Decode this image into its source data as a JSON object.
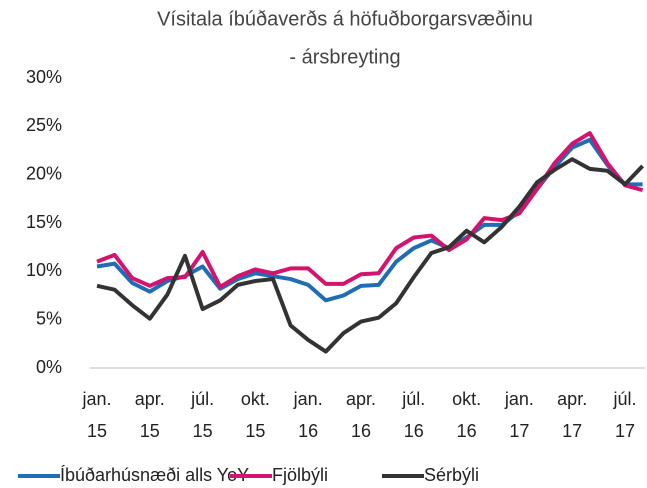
{
  "chart_data": {
    "type": "line",
    "title": [
      "Vísitala íbúðaverðs á höfuðborgarsvæðinu",
      "- ársbreyting"
    ],
    "categories": [
      "jan. 15",
      null,
      null,
      "apr. 15",
      null,
      null,
      "júl. 15",
      null,
      null,
      "okt. 15",
      null,
      null,
      "jan. 16",
      null,
      null,
      "apr. 16",
      null,
      null,
      "júl. 16",
      null,
      null,
      "okt. 16",
      null,
      null,
      "jan. 17",
      null,
      null,
      "apr. 17",
      null,
      null,
      "júl. 17",
      null
    ],
    "series": [
      {
        "name": "Íbúðarhúsnæði alls YoY",
        "color": "#1f6db4",
        "values": [
          10.5,
          10.8,
          8.8,
          7.9,
          9.0,
          9.5,
          10.5,
          8.2,
          9.2,
          9.8,
          9.5,
          9.2,
          8.6,
          7.0,
          7.5,
          8.5,
          8.6,
          11.0,
          12.4,
          13.2,
          12.4,
          13.5,
          14.8,
          14.8,
          16.2,
          18.5,
          20.8,
          22.8,
          23.6,
          21.0,
          19.0,
          19.0
        ]
      },
      {
        "name": "Fjölbýli",
        "color": "#d4136f",
        "values": [
          11.0,
          11.7,
          9.3,
          8.5,
          9.3,
          9.4,
          12.0,
          8.4,
          9.5,
          10.2,
          9.8,
          10.3,
          10.3,
          8.7,
          8.7,
          9.7,
          9.8,
          12.4,
          13.5,
          13.7,
          12.2,
          13.3,
          15.5,
          15.3,
          16.0,
          18.5,
          21.2,
          23.2,
          24.3,
          21.2,
          18.9,
          18.4
        ]
      },
      {
        "name": "Sérbýli",
        "color": "#333333",
        "values": [
          8.5,
          8.1,
          6.5,
          5.1,
          7.6,
          11.6,
          6.1,
          7.0,
          8.6,
          9.0,
          9.2,
          4.4,
          2.9,
          1.7,
          3.6,
          4.8,
          5.2,
          6.7,
          9.4,
          11.9,
          12.5,
          14.2,
          13.0,
          14.6,
          16.7,
          19.2,
          20.5,
          21.6,
          20.6,
          20.4,
          19.0,
          20.9
        ]
      }
    ],
    "ylim": [
      0,
      30
    ],
    "yticks": [
      {
        "value": 0,
        "label": "0%"
      },
      {
        "value": 5,
        "label": "5%"
      },
      {
        "value": 10,
        "label": "10%"
      },
      {
        "value": 15,
        "label": "15%"
      },
      {
        "value": 20,
        "label": "20%"
      },
      {
        "value": 25,
        "label": "25%"
      },
      {
        "value": 30,
        "label": "30%"
      }
    ],
    "grid": false
  }
}
